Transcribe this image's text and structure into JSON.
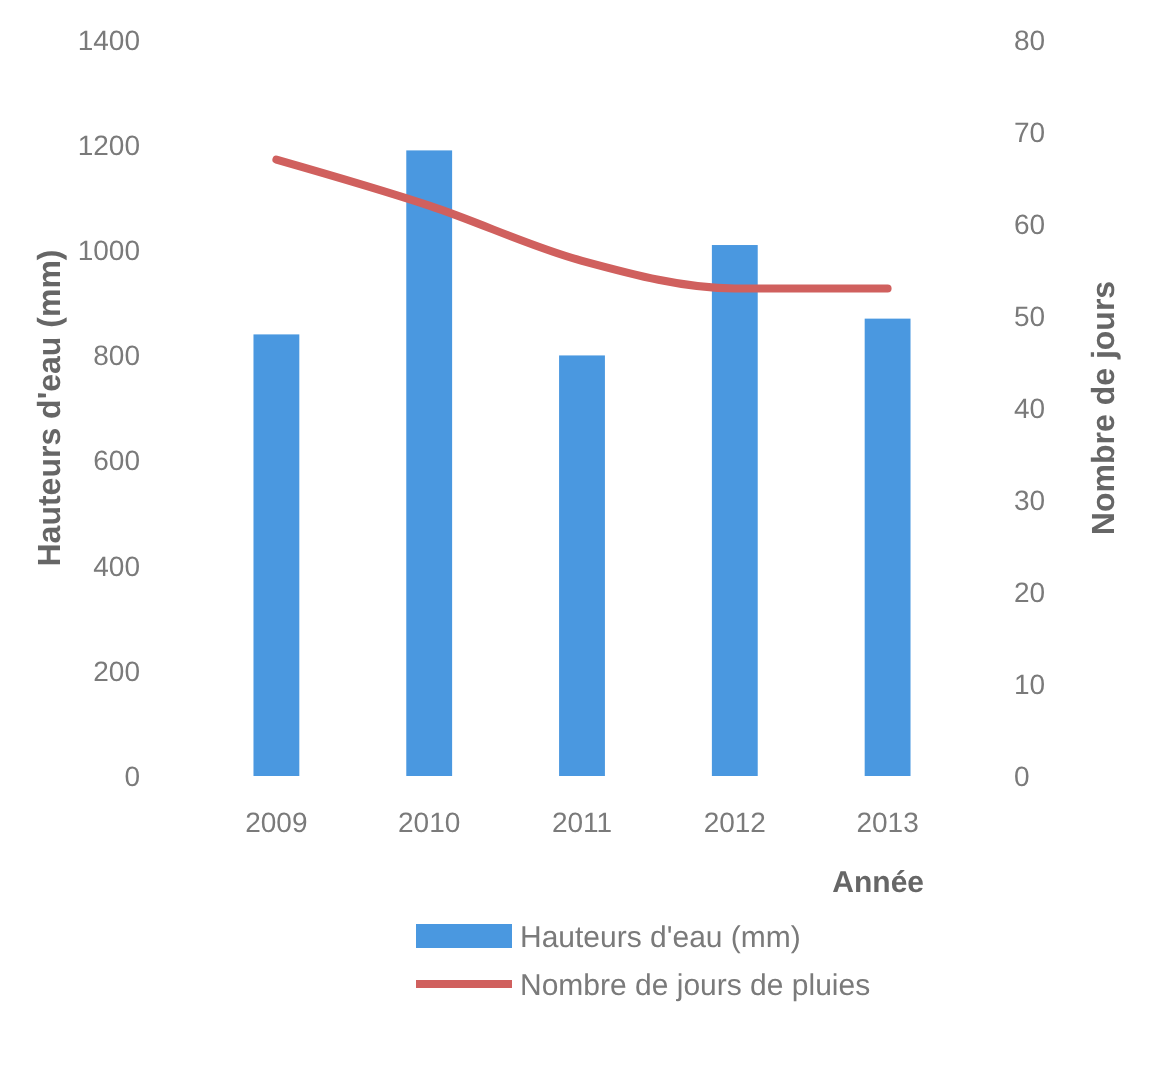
{
  "chart_data": {
    "type": "bar",
    "categories": [
      "2009",
      "2010",
      "2011",
      "2012",
      "2013"
    ],
    "series": [
      {
        "name": "Hauteurs d'eau (mm)",
        "color": "#4a98e0",
        "values": [
          840,
          1190,
          800,
          1010,
          870
        ]
      },
      {
        "name": "Nombre de jours de pluies",
        "type": "line",
        "axis": "y2",
        "color": "#d0605e",
        "values": [
          67,
          62,
          56,
          53,
          53
        ]
      }
    ],
    "xlabel": "Année",
    "ylabel": "Hauteurs d'eau (mm)",
    "y2label": "Nombre de jours",
    "ylim": [
      0,
      1400
    ],
    "yticks": [
      0,
      200,
      400,
      600,
      800,
      1000,
      1200,
      1400
    ],
    "y2lim": [
      0,
      80
    ],
    "y2ticks": [
      0,
      10,
      20,
      30,
      40,
      50,
      60,
      70,
      80
    ],
    "grid": false,
    "legend": "bottom"
  }
}
